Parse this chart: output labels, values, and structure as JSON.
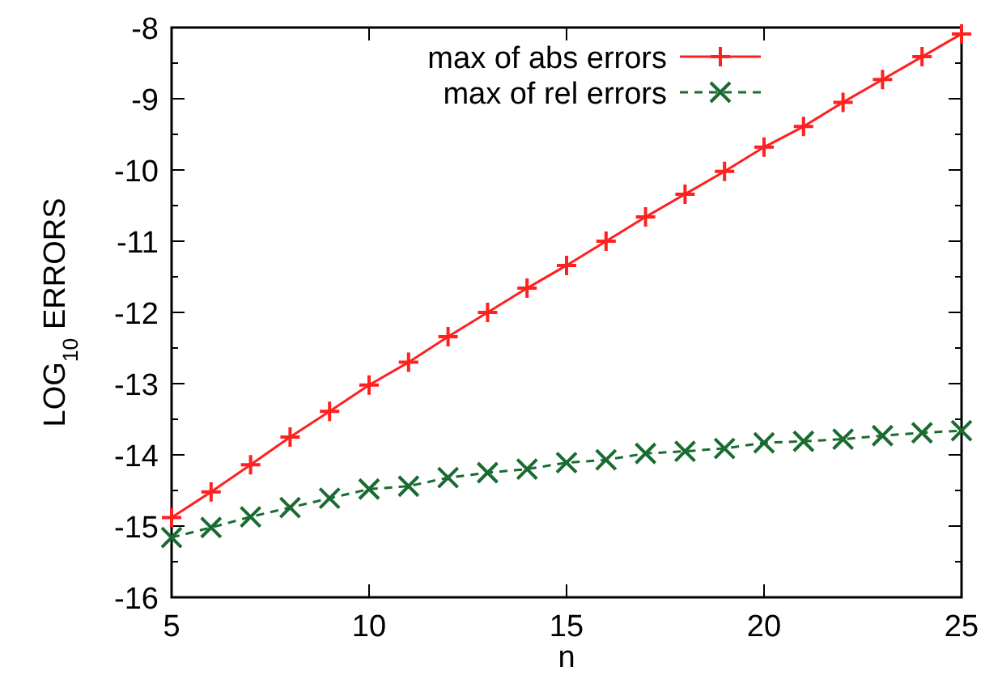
{
  "chart_data": {
    "type": "line",
    "xlabel": "n",
    "ylabel": "LOG$_{10}$ ERRORS",
    "x": [
      5,
      6,
      7,
      8,
      9,
      10,
      11,
      12,
      13,
      14,
      15,
      16,
      17,
      18,
      19,
      20,
      21,
      22,
      23,
      24,
      25
    ],
    "series": [
      {
        "name": "max of abs errors",
        "color": "#ff2020",
        "marker": "cross",
        "line_style": "solid",
        "values": [
          -14.88,
          -14.52,
          -14.14,
          -13.75,
          -13.39,
          -13.02,
          -12.7,
          -12.34,
          -12.0,
          -11.66,
          -11.34,
          -11.0,
          -10.66,
          -10.34,
          -10.02,
          -9.68,
          -9.39,
          -9.05,
          -8.73,
          -8.41,
          -8.09
        ]
      },
      {
        "name": "max of rel errors",
        "color": "#1a6b32",
        "marker": "x",
        "line_style": "dashed",
        "values": [
          -15.16,
          -15.02,
          -14.87,
          -14.74,
          -14.61,
          -14.48,
          -14.44,
          -14.32,
          -14.25,
          -14.2,
          -14.11,
          -14.07,
          -13.98,
          -13.95,
          -13.91,
          -13.83,
          -13.81,
          -13.78,
          -13.73,
          -13.69,
          -13.66
        ]
      }
    ],
    "xlim": [
      5,
      25
    ],
    "xticks": [
      5,
      10,
      15,
      20,
      25
    ],
    "ylim": [
      -16,
      -8
    ],
    "yticks": [
      -16,
      {
        "value": -15.5,
        "label": null
      },
      -15,
      {
        "value": -14.5,
        "label": null
      },
      -14,
      {
        "value": -13.5,
        "label": null
      },
      -13,
      {
        "value": -12.5,
        "label": null
      },
      -12,
      {
        "value": -11.5,
        "label": null
      },
      -11,
      {
        "value": -10.5,
        "label": null
      },
      -10,
      {
        "value": -9.5,
        "label": null
      },
      -9,
      {
        "value": -8.5,
        "label": null
      },
      -8
    ],
    "grid": false,
    "legend": "top right"
  }
}
